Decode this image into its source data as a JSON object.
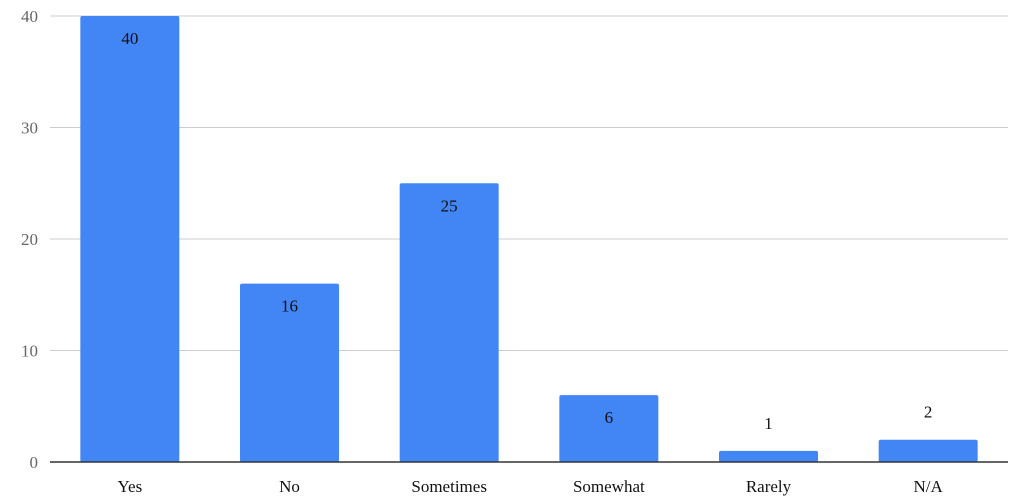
{
  "chart_data": {
    "type": "bar",
    "categories": [
      "Yes",
      "No",
      "Sometimes",
      "Somewhat",
      "Rarely",
      "N/A"
    ],
    "values": [
      40,
      16,
      25,
      6,
      1,
      2
    ],
    "data_labels": [
      "40",
      "16",
      "25",
      "6",
      "1",
      "2"
    ],
    "ylim": [
      0,
      40
    ],
    "yticks": [
      "0",
      "10",
      "20",
      "30",
      "40"
    ],
    "ytick_values": [
      0,
      10,
      20,
      30,
      40
    ],
    "grid": true,
    "legend": "none",
    "bar_color": "#4285f4",
    "grid_color": "#cccccc",
    "axis_color": "#333333"
  }
}
